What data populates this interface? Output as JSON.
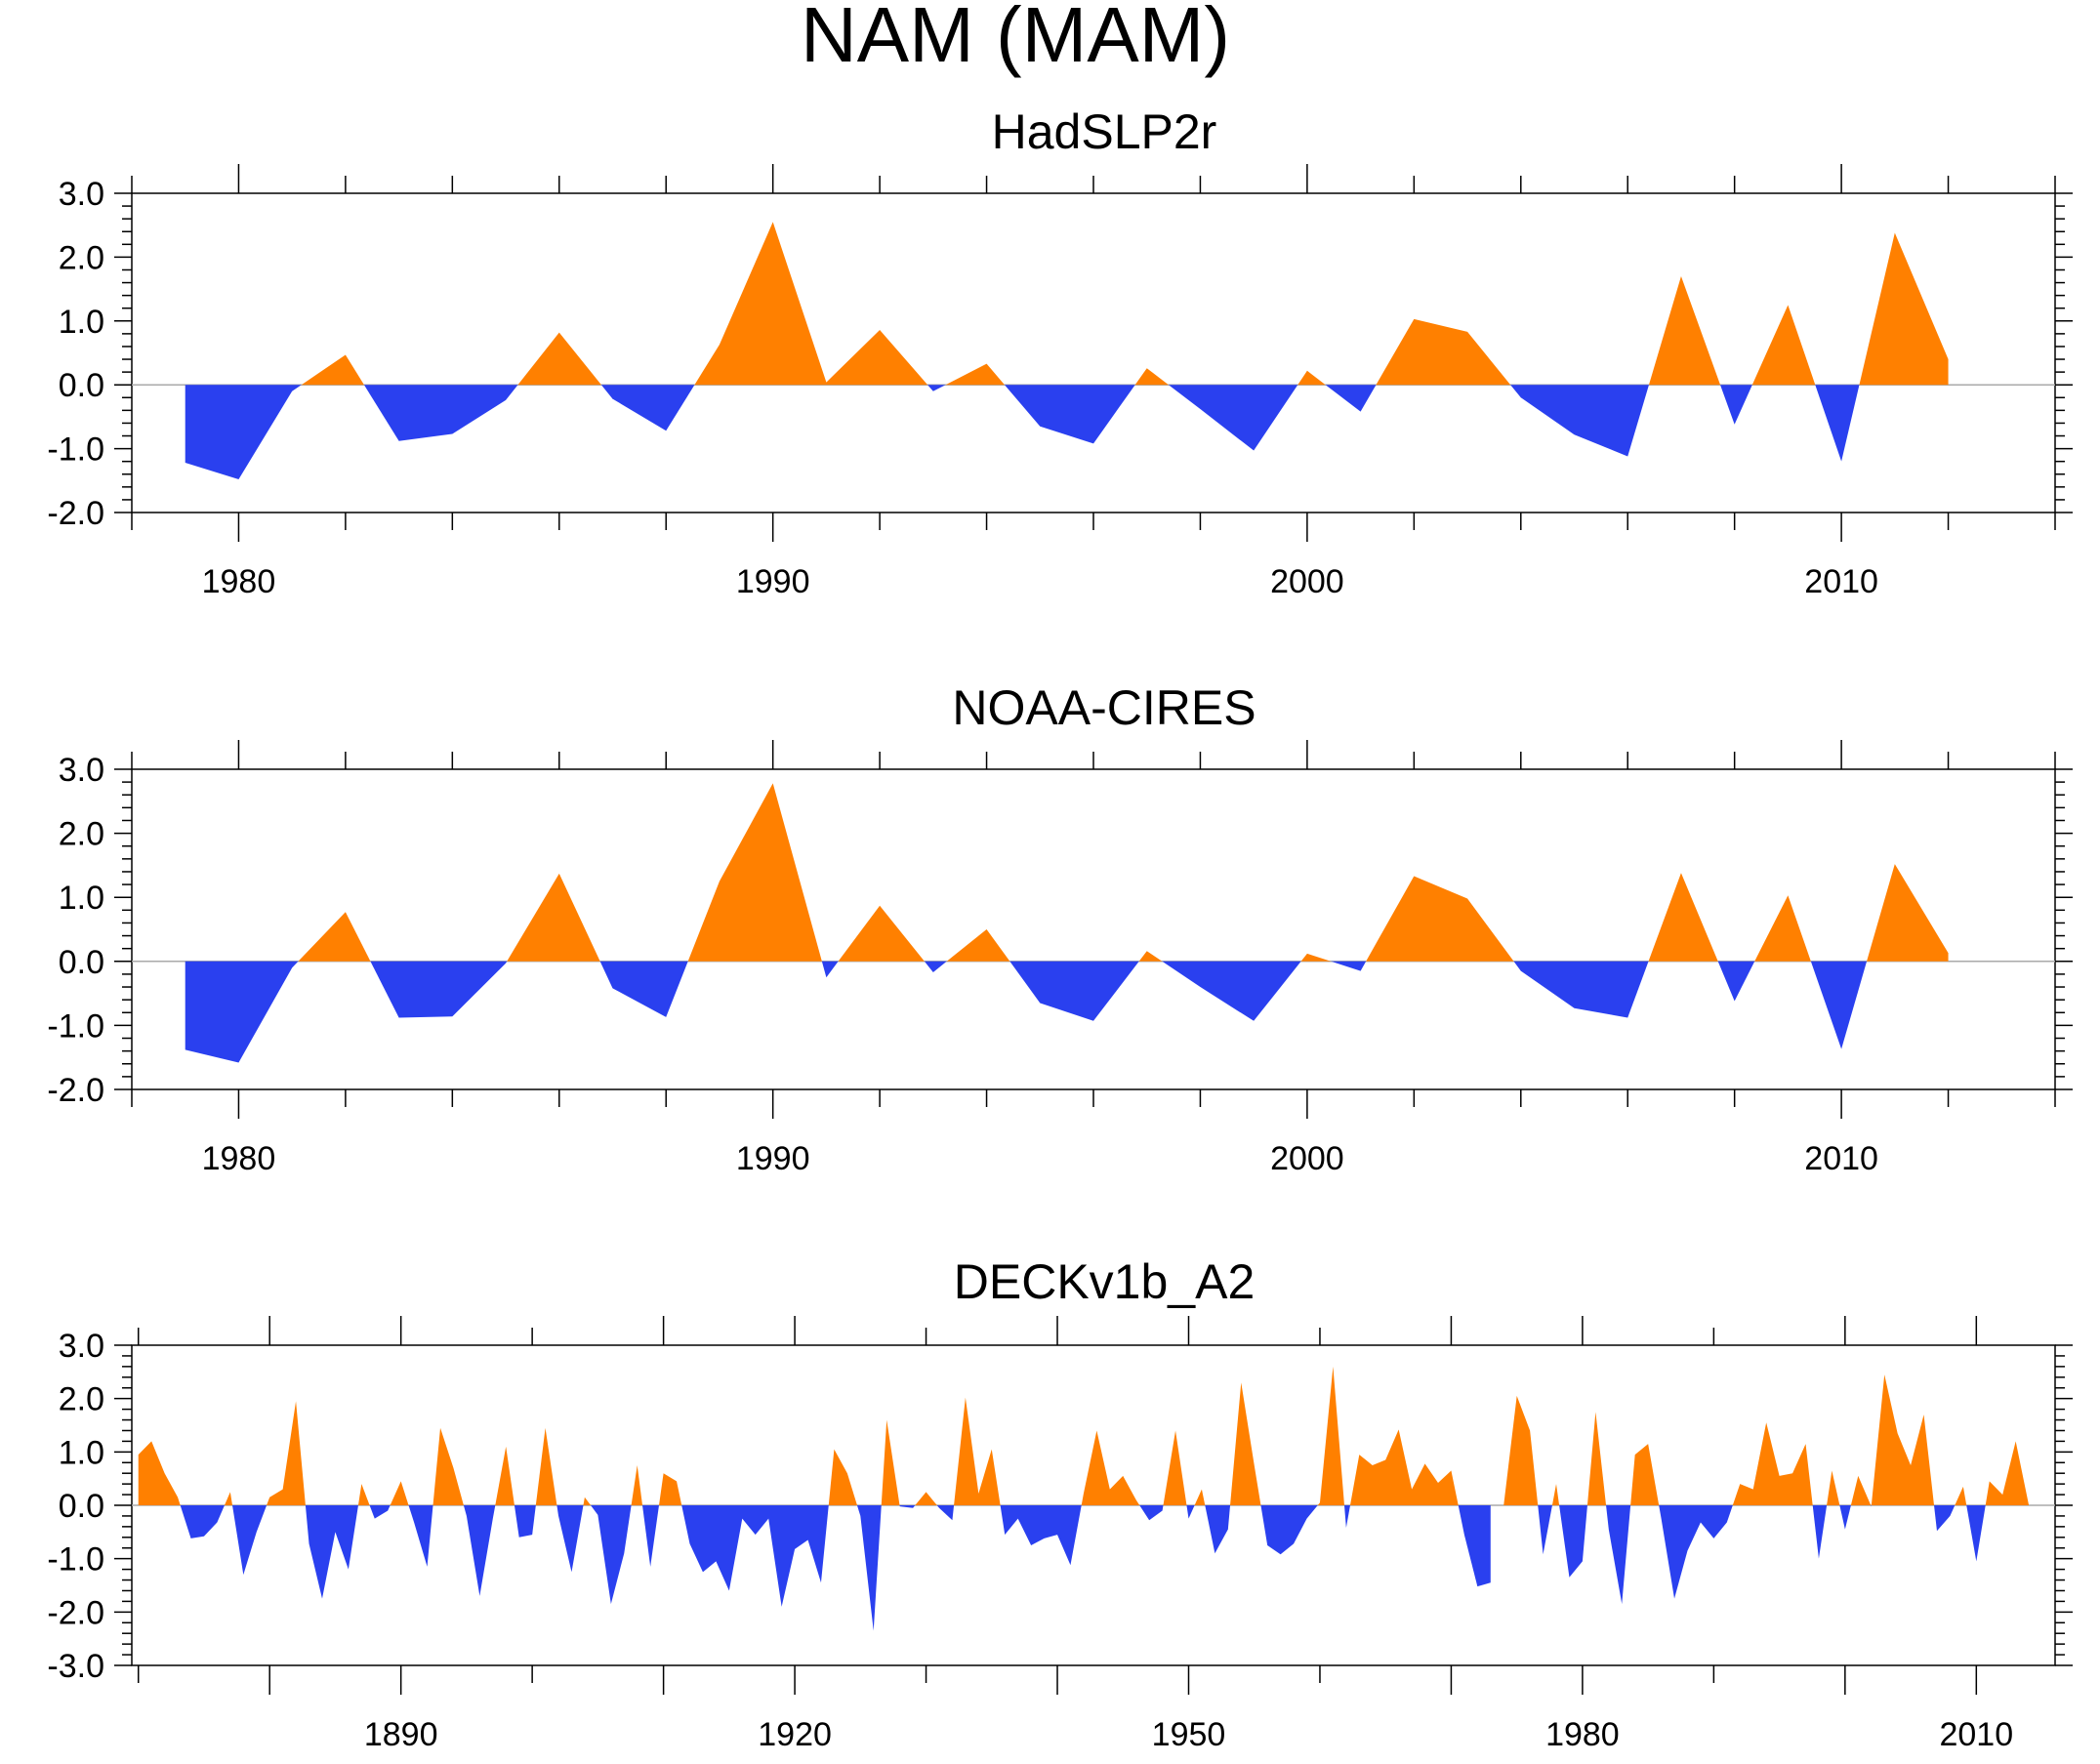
{
  "title": "NAM (MAM)",
  "colors": {
    "positive": "#ff8000",
    "negative": "#2a40ef",
    "zero_line": "#aaaaaa",
    "axis": "#000000"
  },
  "chart_data": [
    {
      "type": "area",
      "title": "HadSLP2r",
      "xlabel": "",
      "ylabel": "",
      "xlim": [
        1978,
        2014
      ],
      "ylim": [
        -2,
        3
      ],
      "yticks": [
        "3.0",
        "2.0",
        "1.0",
        "0.0",
        "-1.0",
        "-2.0"
      ],
      "ytick_values": [
        3,
        2,
        1,
        0,
        -1,
        -2
      ],
      "xticks": [
        "1980",
        "1990",
        "2000",
        "2010"
      ],
      "xtick_values": [
        1980,
        1990,
        2000,
        2010
      ],
      "start_year": 1979,
      "values": [
        -1.22,
        -1.48,
        -0.1,
        0.47,
        -0.88,
        -0.77,
        -0.24,
        0.82,
        -0.22,
        -0.72,
        0.63,
        2.55,
        0.04,
        0.86,
        -0.1,
        0.33,
        -0.65,
        -0.92,
        0.26,
        -0.38,
        -1.03,
        0.22,
        -0.42,
        1.03,
        0.83,
        -0.2,
        -0.78,
        -1.12,
        1.7,
        -0.62,
        1.25,
        -1.2,
        2.38,
        0.4
      ]
    },
    {
      "type": "area",
      "title": "NOAA-CIRES",
      "xlabel": "",
      "ylabel": "",
      "xlim": [
        1978,
        2014
      ],
      "ylim": [
        -2,
        3
      ],
      "yticks": [
        "3.0",
        "2.0",
        "1.0",
        "0.0",
        "-1.0",
        "-2.0"
      ],
      "ytick_values": [
        3,
        2,
        1,
        0,
        -1,
        -2
      ],
      "xticks": [
        "1980",
        "1990",
        "2000",
        "2010"
      ],
      "xtick_values": [
        1980,
        1990,
        2000,
        2010
      ],
      "start_year": 1979,
      "values": [
        -1.38,
        -1.58,
        -0.1,
        0.77,
        -0.88,
        -0.86,
        -0.03,
        1.37,
        -0.42,
        -0.87,
        1.25,
        2.78,
        -0.25,
        0.87,
        -0.17,
        0.5,
        -0.65,
        -0.93,
        0.16,
        -0.4,
        -0.93,
        0.12,
        -0.15,
        1.33,
        0.98,
        -0.15,
        -0.73,
        -0.88,
        1.38,
        -0.62,
        1.03,
        -1.37,
        1.52,
        0.13
      ]
    },
    {
      "type": "area",
      "title": "DECKv1b_A2",
      "xlabel": "",
      "ylabel": "",
      "xlim": [
        1869.5,
        2016
      ],
      "ylim": [
        -3,
        3
      ],
      "yticks": [
        "3.0",
        "2.0",
        "1.0",
        "0.0",
        "-1.0",
        "-2.0",
        "-3.0"
      ],
      "ytick_values": [
        3,
        2,
        1,
        0,
        -1,
        -2,
        -3
      ],
      "xticks": [
        "1890",
        "1920",
        "1950",
        "1980",
        "2010"
      ],
      "xtick_values": [
        1890,
        1920,
        1950,
        1980,
        2010
      ],
      "start_year": 1870,
      "values": [
        0.95,
        1.2,
        0.6,
        0.15,
        -0.62,
        -0.58,
        -0.32,
        0.25,
        -1.3,
        -0.5,
        0.15,
        0.3,
        1.95,
        -0.72,
        -1.75,
        -0.5,
        -1.2,
        0.4,
        -0.25,
        -0.1,
        0.45,
        -0.32,
        -1.15,
        1.45,
        0.7,
        -0.2,
        -1.7,
        -0.25,
        1.1,
        -0.6,
        -0.55,
        1.45,
        -0.2,
        -1.25,
        0.15,
        -0.18,
        -1.85,
        -0.9,
        0.75,
        -1.15,
        0.6,
        0.45,
        -0.72,
        -1.25,
        -1.05,
        -1.6,
        -0.25,
        -0.55,
        -0.25,
        -1.9,
        -0.82,
        -0.65,
        -1.45,
        1.05,
        0.6,
        -0.2,
        -2.35,
        1.6,
        -0.02,
        -0.05,
        0.25,
        -0.05,
        -0.28,
        2.02,
        0.22,
        1.05,
        -0.55,
        -0.25,
        -0.75,
        -0.62,
        -0.55,
        -1.12,
        0.22,
        1.4,
        0.3,
        0.55,
        0.1,
        -0.28,
        -0.1,
        1.4,
        -0.25,
        0.3,
        -0.9,
        -0.45,
        2.3,
        0.75,
        -0.75,
        -0.92,
        -0.72,
        -0.25,
        0.05,
        2.6,
        -0.42,
        0.95,
        0.75,
        0.85,
        1.42,
        0.3,
        0.78,
        0.42,
        0.65,
        -0.55,
        -1.52,
        -1.45,
        0.0,
        2.05,
        1.4,
        -0.92,
        0.4,
        -1.35,
        -1.05,
        1.75,
        -0.45,
        -1.85,
        0.95,
        1.15,
        -0.25,
        -1.75,
        -0.85,
        -0.32,
        -0.62,
        -0.32,
        0.4,
        0.3,
        1.55,
        0.55,
        0.6,
        1.15,
        -1.0,
        0.65,
        -0.45,
        0.55,
        -0.02,
        2.45,
        1.35,
        0.75,
        1.7,
        -0.48,
        -0.2,
        0.35,
        -1.05,
        0.45,
        0.2,
        1.2,
        0.0
      ]
    }
  ]
}
